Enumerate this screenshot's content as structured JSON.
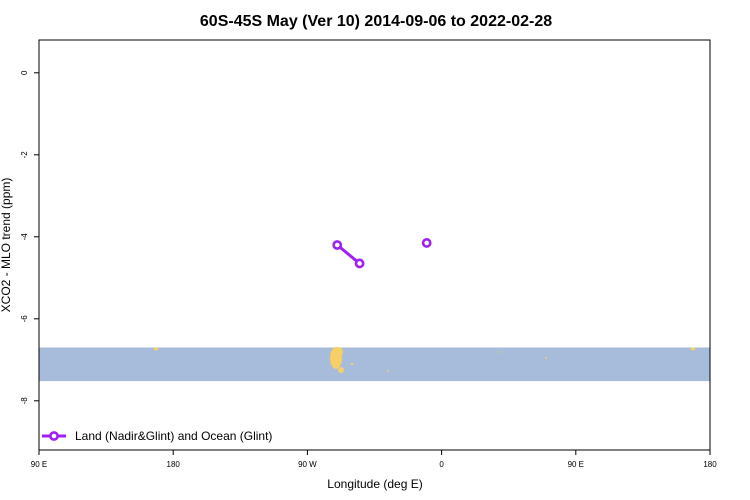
{
  "chart_data": {
    "type": "line",
    "title": "60S-45S May (Ver 10)   2014-09-06 to 2022-02-28",
    "xlabel": "Longitude (deg E)",
    "ylabel": "XCO2 - MLO trend (ppm)",
    "x_ticks": [
      {
        "value": 0,
        "label": "90 E"
      },
      {
        "value": 90,
        "label": "180"
      },
      {
        "value": 180,
        "label": "90 W"
      },
      {
        "value": 270,
        "label": "0"
      },
      {
        "value": 360,
        "label": "90 E"
      },
      {
        "value": 450,
        "label": "180"
      }
    ],
    "y_ticks": [
      0,
      -2,
      -4,
      -6,
      -8
    ],
    "xlim": [
      0,
      450
    ],
    "ylim": [
      -9.2,
      0.8
    ],
    "grid": false,
    "legend_position": "bottom-left",
    "series": [
      {
        "name": "Land (Nadir&Glint) and Ocean (Glint)",
        "color": "#a020f0",
        "segments": [
          [
            {
              "x": 200,
              "y": -4.2
            },
            {
              "x": 215,
              "y": -4.65
            }
          ],
          [
            {
              "x": 260,
              "y": -4.15
            }
          ]
        ]
      }
    ],
    "map_band": {
      "lat_range": "60S-45S",
      "ocean_color": "#a7bbda",
      "land_color": "#f6cf66",
      "y_range": [
        -7.52,
        -6.7
      ]
    }
  }
}
